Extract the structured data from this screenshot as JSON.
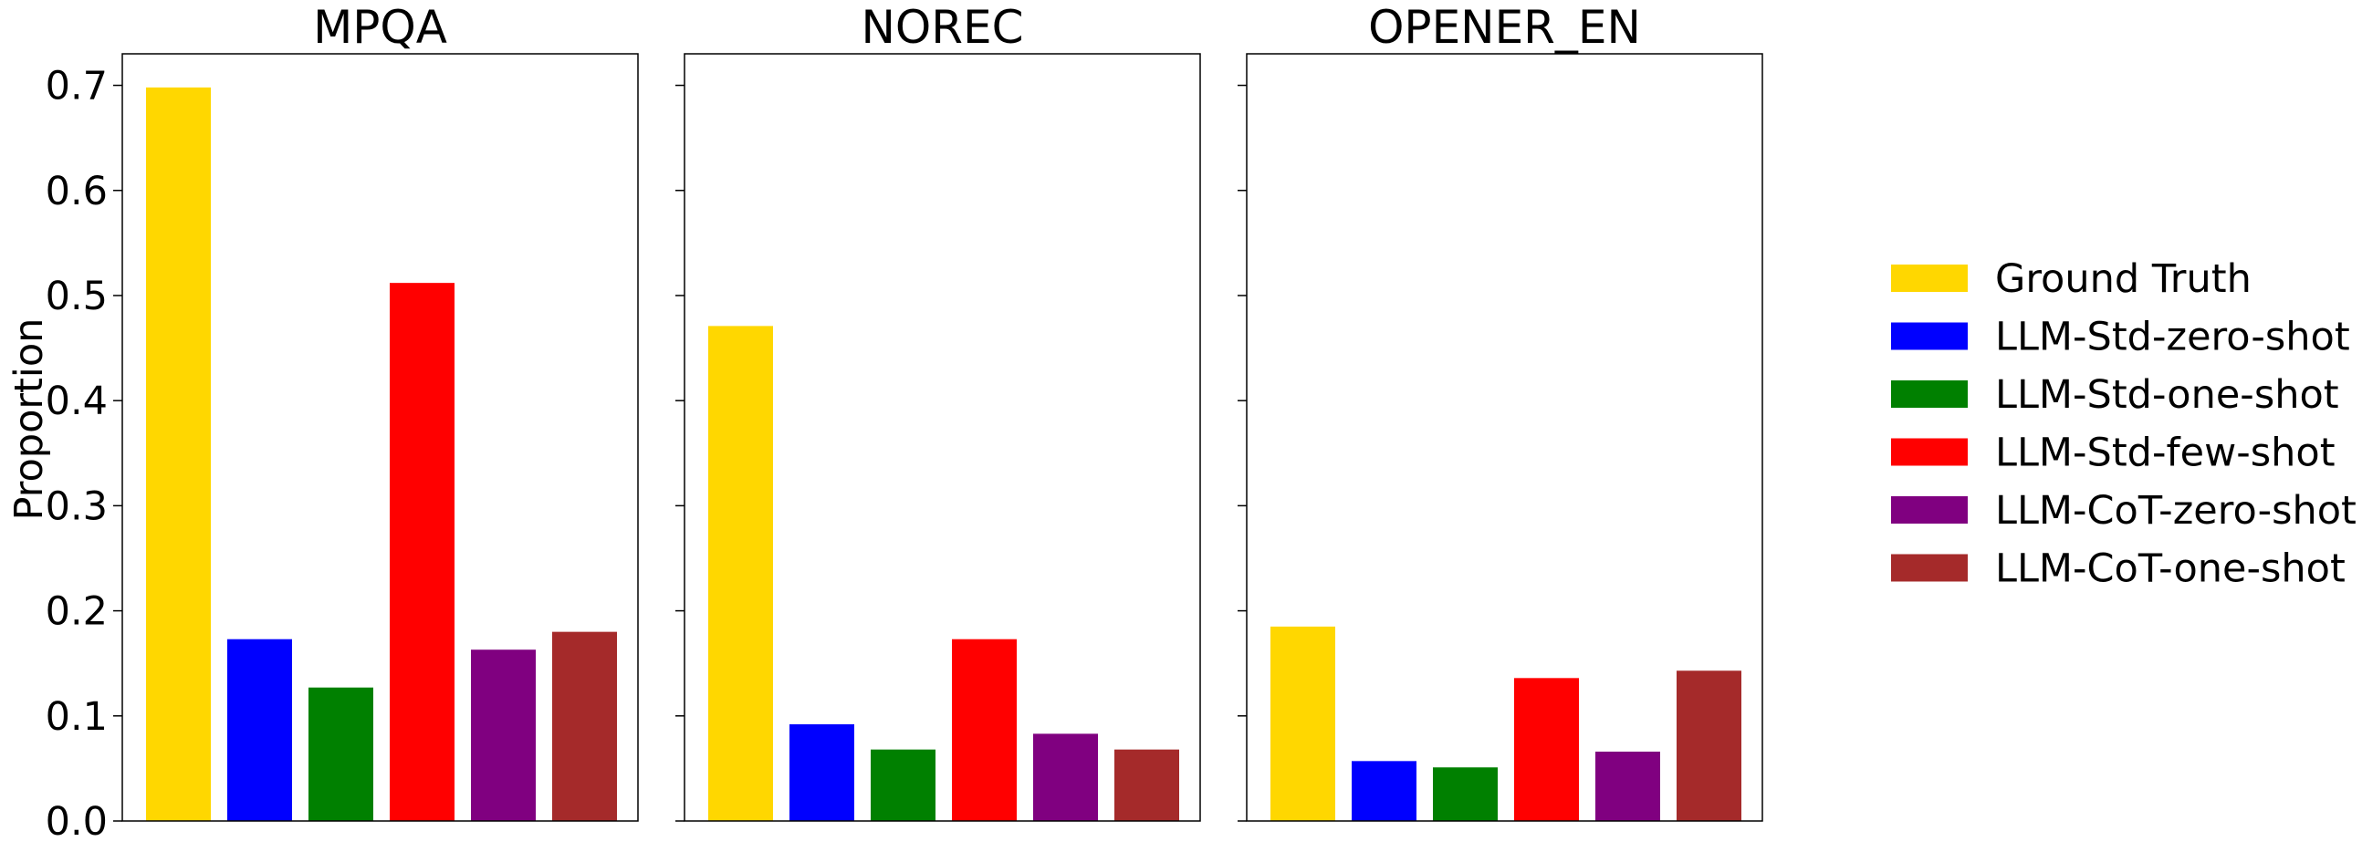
{
  "chart_data": {
    "type": "bar",
    "ylabel": "Proportion",
    "ylim": [
      0,
      0.73
    ],
    "yticks": [
      0.0,
      0.1,
      0.2,
      0.3,
      0.4,
      0.5,
      0.6,
      0.7
    ],
    "ytick_labels": [
      "0.0",
      "0.1",
      "0.2",
      "0.3",
      "0.4",
      "0.5",
      "0.6",
      "0.7"
    ],
    "shared_y": true,
    "grid": false,
    "legend_position": "right",
    "series": [
      {
        "name": "Ground Truth",
        "color": "#FFD700"
      },
      {
        "name": "LLM-Std-zero-shot",
        "color": "#0000FF"
      },
      {
        "name": "LLM-Std-one-shot",
        "color": "#008000"
      },
      {
        "name": "LLM-Std-few-shot",
        "color": "#FF0000"
      },
      {
        "name": "LLM-CoT-zero-shot",
        "color": "#800080"
      },
      {
        "name": "LLM-CoT-one-shot",
        "color": "#A52A2A"
      }
    ],
    "panels": [
      {
        "title": "MPQA",
        "values": [
          0.698,
          0.173,
          0.127,
          0.512,
          0.163,
          0.18
        ]
      },
      {
        "title": "NOREC",
        "values": [
          0.471,
          0.092,
          0.068,
          0.173,
          0.083,
          0.068
        ]
      },
      {
        "title": "OPENER_EN",
        "values": [
          0.185,
          0.057,
          0.051,
          0.136,
          0.066,
          0.143
        ]
      }
    ]
  }
}
